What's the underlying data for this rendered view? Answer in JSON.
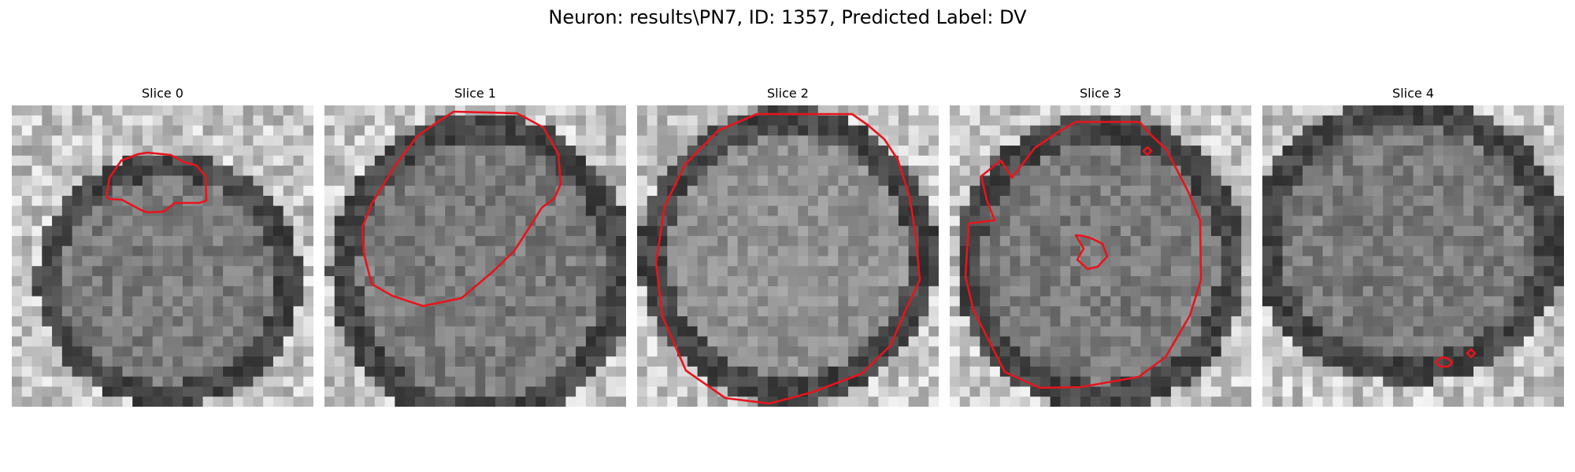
{
  "figure": {
    "title": "Neuron: results\\PN7, ID: 1357, Predicted Label: DV"
  },
  "slices": [
    {
      "title": "Slice 0",
      "seed": 11,
      "blob": "left-center",
      "contour_count": 1
    },
    {
      "title": "Slice 1",
      "seed": 23,
      "blob": "top",
      "contour_count": 1
    },
    {
      "title": "Slice 2",
      "seed": 37,
      "blob": "full-circle",
      "contour_count": 1
    },
    {
      "title": "Slice 3",
      "seed": 41,
      "blob": "circle-dark-top",
      "contour_count": 3
    },
    {
      "title": "Slice 4",
      "seed": 59,
      "blob": "wide-dark",
      "contour_count": 2
    }
  ],
  "colors": {
    "contour": "#e8141c",
    "background": "#ffffff"
  }
}
